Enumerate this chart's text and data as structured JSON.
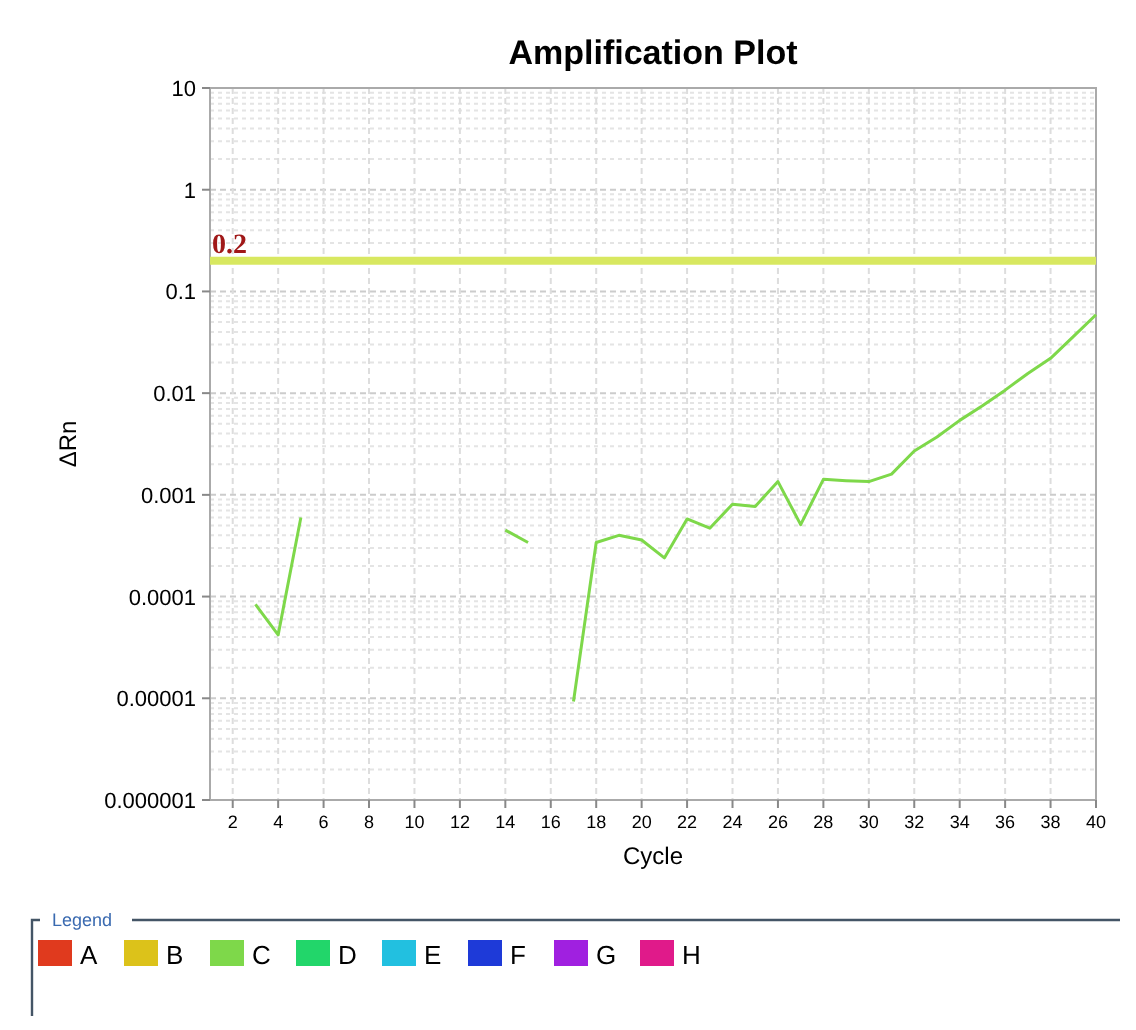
{
  "chart_data": {
    "type": "line",
    "title": "Amplification Plot",
    "xlabel": "Cycle",
    "ylabel": "ΔRn",
    "legend_title": "Legend",
    "log": true,
    "grid": true,
    "legend": "bottom",
    "x": [
      3,
      4,
      5,
      6,
      7,
      8,
      9,
      10,
      11,
      12,
      13,
      14,
      15,
      16,
      17,
      18,
      19,
      20,
      21,
      22,
      23,
      24,
      25,
      26,
      27,
      28,
      29,
      30,
      31,
      32,
      33,
      34,
      35,
      36,
      37,
      38,
      39,
      40
    ],
    "xlim": [
      1,
      40
    ],
    "xticks": [
      2,
      4,
      6,
      8,
      10,
      12,
      14,
      16,
      18,
      20,
      22,
      24,
      26,
      28,
      30,
      32,
      34,
      36,
      38,
      40
    ],
    "ylim": [
      1e-06,
      10
    ],
    "yticks": [
      {
        "value": 1e-06,
        "label": "0.000001"
      },
      {
        "value": 1e-05,
        "label": "0.00001"
      },
      0.0001,
      0.001,
      0.01,
      0.1,
      1,
      10
    ],
    "series": [
      {
        "name": "A",
        "color": "#e03a1e",
        "values": [
          null,
          null,
          null,
          null,
          null,
          null,
          null,
          null,
          null,
          null,
          null,
          null,
          null,
          null,
          null,
          null,
          null,
          null,
          null,
          null,
          null,
          null,
          null,
          null,
          null,
          null,
          null,
          null,
          null,
          null,
          null,
          null,
          null,
          null,
          null,
          null,
          null,
          null
        ]
      },
      {
        "name": "B",
        "color": "#dcc21a",
        "values": [
          null,
          null,
          null,
          null,
          null,
          null,
          null,
          null,
          null,
          null,
          null,
          null,
          null,
          null,
          null,
          null,
          null,
          null,
          null,
          null,
          null,
          null,
          null,
          null,
          null,
          null,
          null,
          null,
          null,
          null,
          null,
          null,
          null,
          null,
          null,
          null,
          null,
          null
        ]
      },
      {
        "name": "C",
        "color": "#7ed84a",
        "values": [
          8.4e-05,
          4.2e-05,
          0.0006,
          null,
          null,
          null,
          null,
          null,
          null,
          null,
          null,
          0.00045,
          0.00034,
          null,
          9.3e-06,
          0.00034,
          0.0004,
          0.00036,
          0.00024,
          0.00058,
          0.00047,
          0.00081,
          0.00077,
          0.00135,
          0.00051,
          0.00142,
          0.00138,
          0.00135,
          0.0016,
          0.0027,
          0.0037,
          0.0054,
          0.0075,
          0.0107,
          0.0156,
          0.022,
          0.036,
          0.059
        ]
      },
      {
        "name": "D",
        "color": "#22d66a",
        "values": [
          null,
          null,
          null,
          null,
          null,
          null,
          null,
          null,
          null,
          null,
          null,
          null,
          null,
          null,
          null,
          null,
          null,
          null,
          null,
          null,
          null,
          null,
          null,
          null,
          null,
          null,
          null,
          null,
          null,
          null,
          null,
          null,
          null,
          null,
          null,
          null,
          null,
          null
        ]
      },
      {
        "name": "E",
        "color": "#22c0e0",
        "values": [
          null,
          null,
          null,
          null,
          null,
          null,
          null,
          null,
          null,
          null,
          null,
          null,
          null,
          null,
          null,
          null,
          null,
          null,
          null,
          null,
          null,
          null,
          null,
          null,
          null,
          null,
          null,
          null,
          null,
          null,
          null,
          null,
          null,
          null,
          null,
          null,
          null,
          null
        ]
      },
      {
        "name": "F",
        "color": "#1e3ad8",
        "values": [
          null,
          null,
          null,
          null,
          null,
          null,
          null,
          null,
          null,
          null,
          null,
          null,
          null,
          null,
          null,
          null,
          null,
          null,
          null,
          null,
          null,
          null,
          null,
          null,
          null,
          null,
          null,
          null,
          null,
          null,
          null,
          null,
          null,
          null,
          null,
          null,
          null,
          null
        ]
      },
      {
        "name": "G",
        "color": "#a020e0",
        "values": [
          null,
          null,
          null,
          null,
          null,
          null,
          null,
          null,
          null,
          null,
          null,
          null,
          null,
          null,
          null,
          null,
          null,
          null,
          null,
          null,
          null,
          null,
          null,
          null,
          null,
          null,
          null,
          null,
          null,
          null,
          null,
          null,
          null,
          null,
          null,
          null,
          null,
          null
        ]
      },
      {
        "name": "H",
        "color": "#e01a8a",
        "values": [
          null,
          null,
          null,
          null,
          null,
          null,
          null,
          null,
          null,
          null,
          null,
          null,
          null,
          null,
          null,
          null,
          null,
          null,
          null,
          null,
          null,
          null,
          null,
          null,
          null,
          null,
          null,
          null,
          null,
          null,
          null,
          null,
          null,
          null,
          null,
          null,
          null,
          null
        ]
      }
    ],
    "ref_lines": [
      {
        "axis": "y",
        "value": 0.2,
        "label": "0.2",
        "color": "#d8e860"
      }
    ]
  }
}
